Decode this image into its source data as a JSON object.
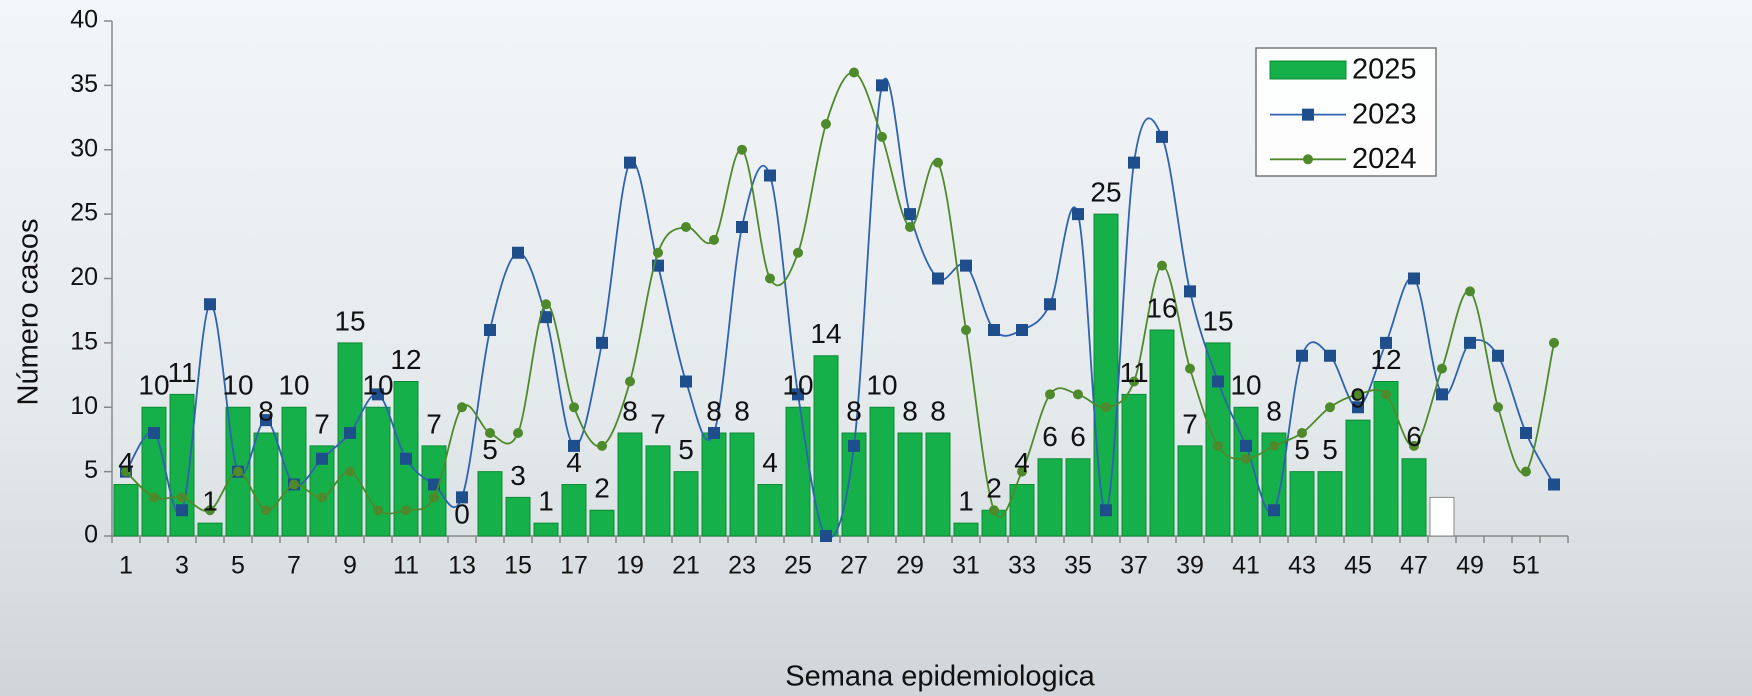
{
  "chart_data": {
    "type": "bar",
    "x_label": "Semana epidemiologica",
    "y_label": "Número casos",
    "categories": [
      1,
      null,
      3,
      null,
      5,
      null,
      7,
      null,
      9,
      null,
      11,
      null,
      13,
      null,
      15,
      null,
      17,
      null,
      19,
      null,
      21,
      null,
      23,
      null,
      25,
      null,
      27,
      null,
      29,
      null,
      31,
      null,
      33,
      null,
      35,
      null,
      37,
      null,
      39,
      null,
      41,
      null,
      43,
      null,
      45,
      null,
      47,
      null,
      49,
      null,
      51,
      null
    ],
    "ylim": [
      0,
      40
    ],
    "yticks": [
      0,
      5,
      10,
      15,
      20,
      25,
      30,
      35,
      40
    ],
    "legend": "top-right",
    "series": [
      {
        "name": "2025",
        "type": "bar",
        "color": "#16b04a",
        "values": [
          4,
          10,
          11,
          1,
          10,
          8,
          10,
          7,
          15,
          10,
          12,
          7,
          0,
          5,
          3,
          1,
          4,
          2,
          8,
          7,
          5,
          8,
          8,
          4,
          10,
          14,
          8,
          10,
          8,
          8,
          1,
          2,
          4,
          6,
          6,
          25,
          11,
          16,
          7,
          15,
          10,
          8,
          5,
          5,
          9,
          12,
          6,
          3,
          null,
          null,
          null,
          null
        ],
        "colors": [
          "#16b04a",
          "#16b04a",
          "#16b04a",
          "#16b04a",
          "#16b04a",
          "#16b04a",
          "#16b04a",
          "#16b04a",
          "#16b04a",
          "#16b04a",
          "#16b04a",
          "#16b04a",
          "#16b04a",
          "#16b04a",
          "#16b04a",
          "#16b04a",
          "#16b04a",
          "#16b04a",
          "#16b04a",
          "#16b04a",
          "#16b04a",
          "#16b04a",
          "#16b04a",
          "#16b04a",
          "#16b04a",
          "#16b04a",
          "#16b04a",
          "#16b04a",
          "#16b04a",
          "#16b04a",
          "#16b04a",
          "#16b04a",
          "#16b04a",
          "#16b04a",
          "#16b04a",
          "#16b04a",
          "#16b04a",
          "#16b04a",
          "#16b04a",
          "#16b04a",
          "#16b04a",
          "#16b04a",
          "#16b04a",
          "#16b04a",
          "#16b04a",
          "#16b04a",
          "#16b04a",
          "#ffffff",
          null,
          null,
          null,
          null
        ],
        "value_labels": [
          "4",
          "10",
          "11",
          "1",
          "10",
          "8",
          "10",
          "7",
          "15",
          "10",
          "12",
          "7",
          "0",
          "5",
          "3",
          "1",
          "4",
          "2",
          "8",
          "7",
          "5",
          "8",
          "8",
          "4",
          "10",
          "14",
          "8",
          "10",
          "8",
          "8",
          "1",
          "2",
          "4",
          "6",
          "6",
          "25",
          "11",
          "16",
          "7",
          "15",
          "10",
          "8",
          "5",
          "5",
          "9",
          "12",
          "6",
          null,
          null,
          null,
          null,
          null
        ]
      },
      {
        "name": "2023",
        "type": "line",
        "color": "#2f62b0",
        "marker": "square",
        "marker_color": "#1f4e8c",
        "values": [
          5,
          8,
          2,
          18,
          5,
          9,
          4,
          6,
          8,
          11,
          6,
          4,
          3,
          16,
          22,
          17,
          7,
          15,
          29,
          21,
          12,
          8,
          24,
          28,
          11,
          0,
          7,
          35,
          25,
          20,
          21,
          16,
          16,
          18,
          25,
          2,
          29,
          31,
          19,
          12,
          7,
          2,
          14,
          14,
          10,
          15,
          20,
          11,
          15,
          14,
          8,
          4
        ]
      },
      {
        "name": "2024",
        "type": "line",
        "color": "#4e8a2c",
        "marker": "circle",
        "marker_color": "#4e8a2c",
        "values": [
          5,
          3,
          3,
          2,
          5,
          2,
          4,
          3,
          5,
          2,
          2,
          3,
          10,
          8,
          8,
          18,
          10,
          7,
          12,
          22,
          24,
          23,
          30,
          20,
          22,
          32,
          36,
          31,
          24,
          29,
          16,
          2,
          5,
          11,
          11,
          10,
          12,
          21,
          13,
          7,
          6,
          7,
          8,
          10,
          11,
          11,
          7,
          13,
          19,
          10,
          5,
          15
        ]
      }
    ]
  }
}
